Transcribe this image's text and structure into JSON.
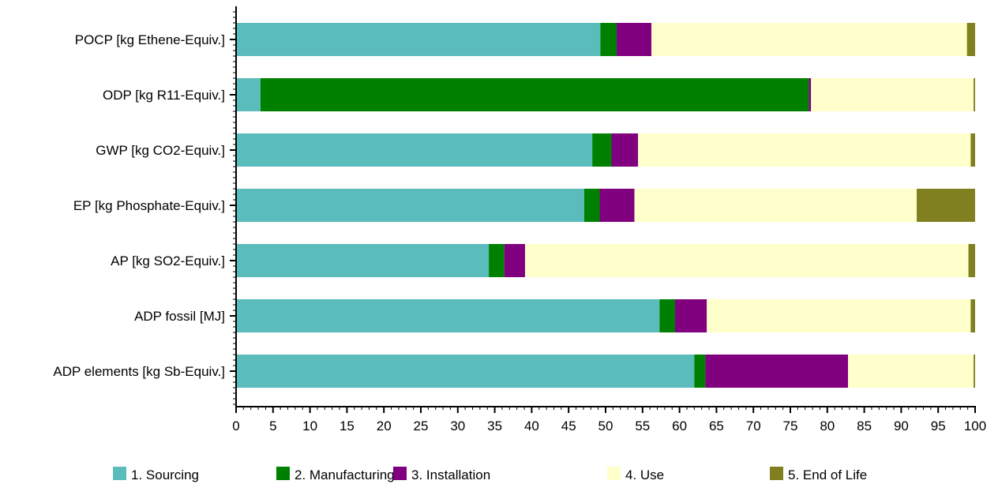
{
  "chart_data": {
    "type": "bar",
    "orientation": "horizontal",
    "stacked": true,
    "title": "",
    "xlabel": "",
    "ylabel": "",
    "xlim": [
      0,
      100
    ],
    "x_ticks": [
      "0",
      "5",
      "10",
      "15",
      "20",
      "25",
      "30",
      "35",
      "40",
      "45",
      "50",
      "55",
      "60",
      "65",
      "70",
      "75",
      "80",
      "85",
      "90",
      "95",
      "100"
    ],
    "categories": [
      "POCP [kg Ethene-Equiv.]",
      "ODP [kg R11-Equiv.]",
      "GWP [kg CO2-Equiv.]",
      "EP [kg Phosphate-Equiv.]",
      "AP [kg SO2-Equiv.]",
      "ADP fossil [MJ]",
      "ADP elements [kg Sb-Equiv.]"
    ],
    "series": [
      {
        "name": "1. Sourcing",
        "color": "#5bbcbc",
        "values": [
          49.3,
          3.3,
          48.2,
          47.1,
          34.2,
          57.3,
          62.0
        ]
      },
      {
        "name": "2. Manufacturing",
        "color": "#008000",
        "values": [
          2.2,
          74.2,
          2.6,
          2.1,
          2.1,
          2.1,
          1.5
        ]
      },
      {
        "name": "3. Installation",
        "color": "#800080",
        "values": [
          4.7,
          0.3,
          3.6,
          4.7,
          2.8,
          4.3,
          19.3
        ]
      },
      {
        "name": "4. Use",
        "color": "#ffffcc",
        "values": [
          42.7,
          22.0,
          45.0,
          38.2,
          60.0,
          35.7,
          17.0
        ]
      },
      {
        "name": "5. End of Life",
        "color": "#808020",
        "values": [
          1.1,
          0.2,
          0.6,
          7.9,
          0.9,
          0.6,
          0.2
        ]
      }
    ],
    "legend_position": "bottom",
    "grid": false
  }
}
